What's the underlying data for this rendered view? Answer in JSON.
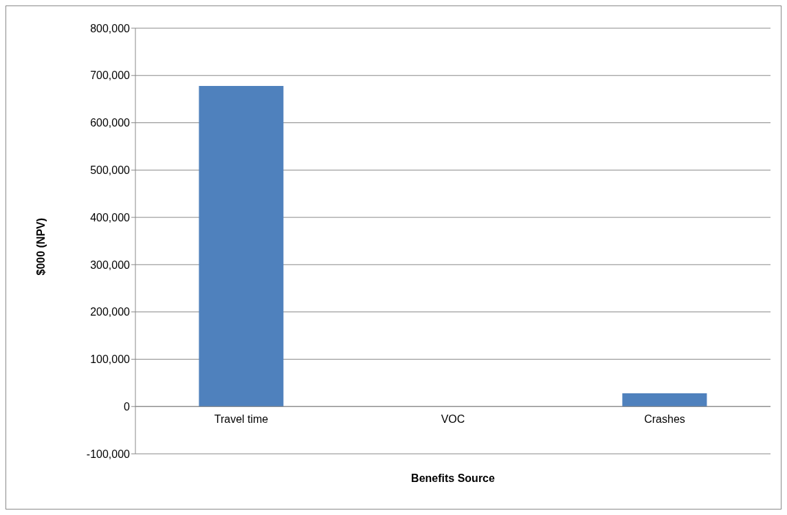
{
  "chart_data": {
    "type": "bar",
    "xlabel": "Benefits Source",
    "ylabel": "$000 (NPV)",
    "categories": [
      "Travel time",
      "VOC",
      "Crashes"
    ],
    "values": [
      678000,
      0,
      28000
    ],
    "color": "#4f81bd",
    "ylim": [
      -100000,
      800000
    ],
    "yticks": [
      {
        "value": -100000,
        "label": "-100,000"
      },
      0,
      {
        "value": 100000,
        "label": "100,000"
      },
      {
        "value": 200000,
        "label": "200,000"
      },
      {
        "value": 300000,
        "label": "300,000"
      },
      {
        "value": 400000,
        "label": "400,000"
      },
      {
        "value": 500000,
        "label": "500,000"
      },
      {
        "value": 600000,
        "label": "600,000"
      },
      {
        "value": 700000,
        "label": "700,000"
      },
      {
        "value": 800000,
        "label": "800,000"
      }
    ],
    "grid": "y"
  }
}
